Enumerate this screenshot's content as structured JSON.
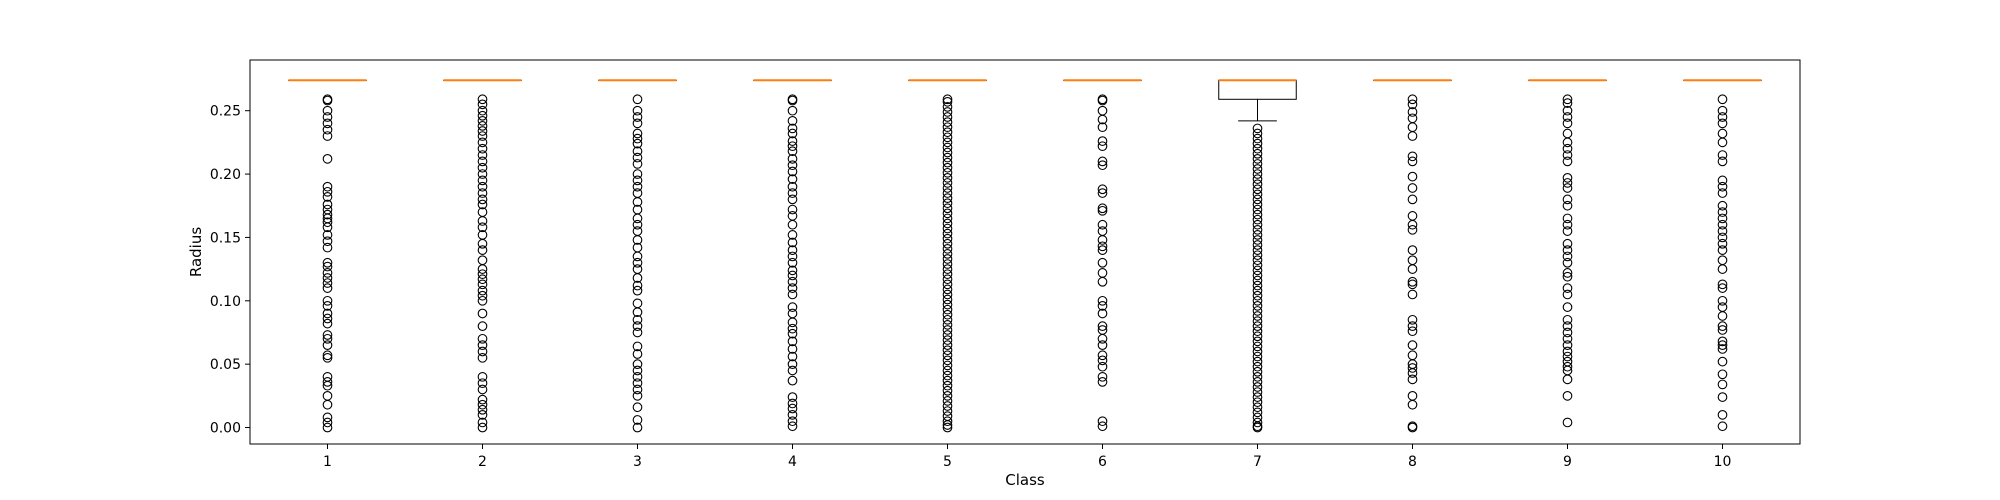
{
  "chart_data": {
    "type": "box",
    "xlabel": "Class",
    "ylabel": "Radius",
    "ylim": [
      -0.013,
      0.29
    ],
    "yticks": [
      0.0,
      0.05,
      0.1,
      0.15,
      0.2,
      0.25
    ],
    "ytick_labels": [
      "0.00",
      "0.05",
      "0.10",
      "0.15",
      "0.20",
      "0.25"
    ],
    "categories": [
      "1",
      "2",
      "3",
      "4",
      "5",
      "6",
      "7",
      "8",
      "9",
      "10"
    ],
    "grid": false,
    "legend": "none",
    "colors": {
      "median": "#ff7f0e",
      "box": "#000000",
      "outlier": "#000000"
    },
    "boxes": [
      {
        "label": "1",
        "q1": 0.274,
        "median": 0.274,
        "q3": 0.274,
        "whisker_low": 0.274,
        "whisker_high": 0.274,
        "outliers": [
          0.259,
          0.258,
          0.25,
          0.245,
          0.24,
          0.235,
          0.23,
          0.212,
          0.19,
          0.186,
          0.182,
          0.176,
          0.172,
          0.168,
          0.165,
          0.162,
          0.158,
          0.152,
          0.147,
          0.142,
          0.13,
          0.127,
          0.122,
          0.118,
          0.114,
          0.11,
          0.1,
          0.096,
          0.09,
          0.086,
          0.082,
          0.073,
          0.07,
          0.065,
          0.057,
          0.055,
          0.04,
          0.036,
          0.033,
          0.025,
          0.018,
          0.008,
          0.004,
          0.0
        ]
      },
      {
        "label": "2",
        "q1": 0.274,
        "median": 0.274,
        "q3": 0.274,
        "whisker_low": 0.274,
        "whisker_high": 0.274,
        "outliers": [
          0.259,
          0.255,
          0.25,
          0.246,
          0.242,
          0.238,
          0.234,
          0.23,
          0.225,
          0.22,
          0.215,
          0.21,
          0.205,
          0.2,
          0.195,
          0.19,
          0.185,
          0.18,
          0.176,
          0.17,
          0.163,
          0.158,
          0.152,
          0.145,
          0.14,
          0.132,
          0.125,
          0.121,
          0.117,
          0.113,
          0.108,
          0.104,
          0.1,
          0.09,
          0.08,
          0.07,
          0.065,
          0.06,
          0.055,
          0.04,
          0.035,
          0.03,
          0.022,
          0.018,
          0.014,
          0.01,
          0.004,
          0.0
        ]
      },
      {
        "label": "3",
        "q1": 0.274,
        "median": 0.274,
        "q3": 0.274,
        "whisker_low": 0.274,
        "whisker_high": 0.274,
        "outliers": [
          0.259,
          0.25,
          0.245,
          0.24,
          0.232,
          0.228,
          0.224,
          0.218,
          0.213,
          0.208,
          0.2,
          0.195,
          0.19,
          0.185,
          0.178,
          0.172,
          0.165,
          0.16,
          0.155,
          0.148,
          0.142,
          0.135,
          0.13,
          0.125,
          0.118,
          0.112,
          0.108,
          0.098,
          0.091,
          0.085,
          0.08,
          0.075,
          0.064,
          0.058,
          0.05,
          0.045,
          0.04,
          0.035,
          0.03,
          0.025,
          0.016,
          0.006,
          0.0
        ]
      },
      {
        "label": "4",
        "q1": 0.274,
        "median": 0.274,
        "q3": 0.274,
        "whisker_low": 0.274,
        "whisker_high": 0.274,
        "outliers": [
          0.259,
          0.258,
          0.25,
          0.242,
          0.236,
          0.232,
          0.226,
          0.222,
          0.218,
          0.212,
          0.207,
          0.202,
          0.196,
          0.19,
          0.185,
          0.18,
          0.172,
          0.167,
          0.16,
          0.152,
          0.146,
          0.14,
          0.135,
          0.13,
          0.124,
          0.12,
          0.115,
          0.11,
          0.105,
          0.095,
          0.09,
          0.083,
          0.078,
          0.074,
          0.068,
          0.062,
          0.056,
          0.05,
          0.045,
          0.037,
          0.024,
          0.019,
          0.015,
          0.01,
          0.005,
          0.001
        ]
      },
      {
        "label": "5",
        "q1": 0.274,
        "median": 0.274,
        "q3": 0.274,
        "whisker_low": 0.274,
        "whisker_high": 0.274,
        "outliers": [
          0.259,
          0.257,
          0.253,
          0.249,
          0.245,
          0.241,
          0.237,
          0.233,
          0.229,
          0.225,
          0.221,
          0.217,
          0.213,
          0.209,
          0.205,
          0.201,
          0.197,
          0.193,
          0.189,
          0.185,
          0.181,
          0.177,
          0.173,
          0.169,
          0.165,
          0.161,
          0.157,
          0.153,
          0.149,
          0.145,
          0.141,
          0.137,
          0.133,
          0.129,
          0.125,
          0.121,
          0.117,
          0.113,
          0.109,
          0.105,
          0.101,
          0.097,
          0.093,
          0.089,
          0.085,
          0.081,
          0.077,
          0.073,
          0.069,
          0.065,
          0.061,
          0.057,
          0.053,
          0.049,
          0.045,
          0.041,
          0.037,
          0.033,
          0.029,
          0.025,
          0.021,
          0.017,
          0.013,
          0.009,
          0.005,
          0.002,
          0.0
        ]
      },
      {
        "label": "6",
        "q1": 0.274,
        "median": 0.274,
        "q3": 0.274,
        "whisker_low": 0.274,
        "whisker_high": 0.274,
        "outliers": [
          0.259,
          0.258,
          0.25,
          0.243,
          0.237,
          0.226,
          0.222,
          0.21,
          0.207,
          0.188,
          0.185,
          0.173,
          0.171,
          0.16,
          0.155,
          0.148,
          0.143,
          0.14,
          0.13,
          0.122,
          0.115,
          0.1,
          0.096,
          0.09,
          0.08,
          0.077,
          0.07,
          0.065,
          0.057,
          0.053,
          0.048,
          0.04,
          0.036,
          0.005,
          0.001
        ]
      },
      {
        "label": "7",
        "q1": 0.259,
        "median": 0.274,
        "q3": 0.274,
        "whisker_low": 0.242,
        "whisker_high": 0.274,
        "outliers": [
          0.236,
          0.232,
          0.228,
          0.224,
          0.22,
          0.216,
          0.212,
          0.208,
          0.204,
          0.2,
          0.196,
          0.192,
          0.188,
          0.184,
          0.18,
          0.176,
          0.172,
          0.168,
          0.164,
          0.16,
          0.156,
          0.152,
          0.148,
          0.144,
          0.14,
          0.136,
          0.132,
          0.128,
          0.124,
          0.12,
          0.116,
          0.112,
          0.108,
          0.104,
          0.1,
          0.096,
          0.092,
          0.088,
          0.084,
          0.08,
          0.076,
          0.072,
          0.068,
          0.064,
          0.06,
          0.056,
          0.052,
          0.048,
          0.044,
          0.04,
          0.036,
          0.032,
          0.028,
          0.024,
          0.02,
          0.016,
          0.012,
          0.008,
          0.004,
          0.001,
          0.0
        ]
      },
      {
        "label": "8",
        "q1": 0.274,
        "median": 0.274,
        "q3": 0.274,
        "whisker_low": 0.274,
        "whisker_high": 0.274,
        "outliers": [
          0.259,
          0.255,
          0.249,
          0.244,
          0.237,
          0.23,
          0.214,
          0.21,
          0.198,
          0.189,
          0.18,
          0.167,
          0.16,
          0.156,
          0.14,
          0.132,
          0.125,
          0.115,
          0.113,
          0.105,
          0.085,
          0.08,
          0.076,
          0.065,
          0.057,
          0.05,
          0.047,
          0.043,
          0.038,
          0.025,
          0.018,
          0.001,
          0.0
        ]
      },
      {
        "label": "9",
        "q1": 0.274,
        "median": 0.274,
        "q3": 0.274,
        "whisker_low": 0.274,
        "whisker_high": 0.274,
        "outliers": [
          0.259,
          0.256,
          0.25,
          0.245,
          0.24,
          0.232,
          0.225,
          0.22,
          0.215,
          0.21,
          0.197,
          0.193,
          0.189,
          0.18,
          0.175,
          0.165,
          0.16,
          0.155,
          0.145,
          0.14,
          0.135,
          0.13,
          0.122,
          0.119,
          0.11,
          0.105,
          0.095,
          0.085,
          0.08,
          0.075,
          0.07,
          0.065,
          0.06,
          0.056,
          0.052,
          0.048,
          0.045,
          0.038,
          0.025,
          0.004
        ]
      },
      {
        "label": "10",
        "q1": 0.274,
        "median": 0.274,
        "q3": 0.274,
        "whisker_low": 0.274,
        "whisker_high": 0.274,
        "outliers": [
          0.259,
          0.25,
          0.245,
          0.24,
          0.232,
          0.225,
          0.215,
          0.21,
          0.195,
          0.19,
          0.185,
          0.175,
          0.17,
          0.165,
          0.16,
          0.155,
          0.15,
          0.145,
          0.14,
          0.132,
          0.125,
          0.113,
          0.11,
          0.1,
          0.095,
          0.088,
          0.08,
          0.077,
          0.068,
          0.065,
          0.062,
          0.052,
          0.042,
          0.034,
          0.024,
          0.01,
          0.001
        ]
      }
    ]
  }
}
